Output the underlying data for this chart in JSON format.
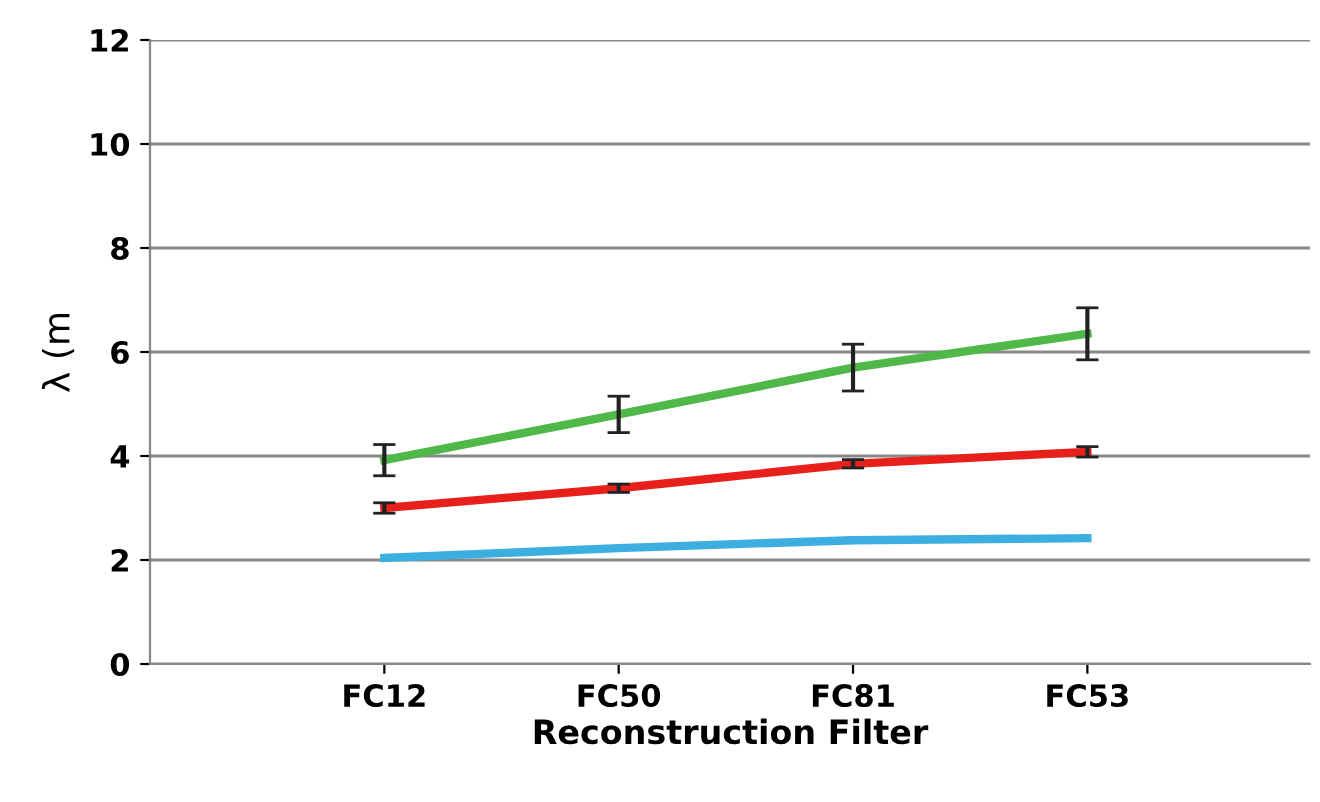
{
  "chart_data": {
    "type": "line",
    "xlabel": "Reconstruction Filter",
    "ylabel": "λ (m",
    "categories": [
      "FC12",
      "FC50",
      "FC81",
      "FC53"
    ],
    "series": [
      {
        "color": "#3daee0",
        "values": [
          2.04,
          2.23,
          2.38,
          2.42
        ]
      },
      {
        "color": "#e8201c",
        "values": [
          3.0,
          3.38,
          3.85,
          4.08
        ],
        "errors": [
          0.1,
          0.08,
          0.08,
          0.1
        ]
      },
      {
        "color": "#4fb848",
        "values": [
          3.92,
          4.8,
          5.7,
          6.35
        ],
        "errors": [
          0.3,
          0.35,
          0.45,
          0.5
        ]
      }
    ],
    "ylim": [
      0,
      12
    ],
    "yticks": [
      0,
      2,
      4,
      6,
      8,
      10,
      12
    ],
    "grid": "y",
    "legend": false,
    "marker": "none",
    "line_style": "solid"
  }
}
